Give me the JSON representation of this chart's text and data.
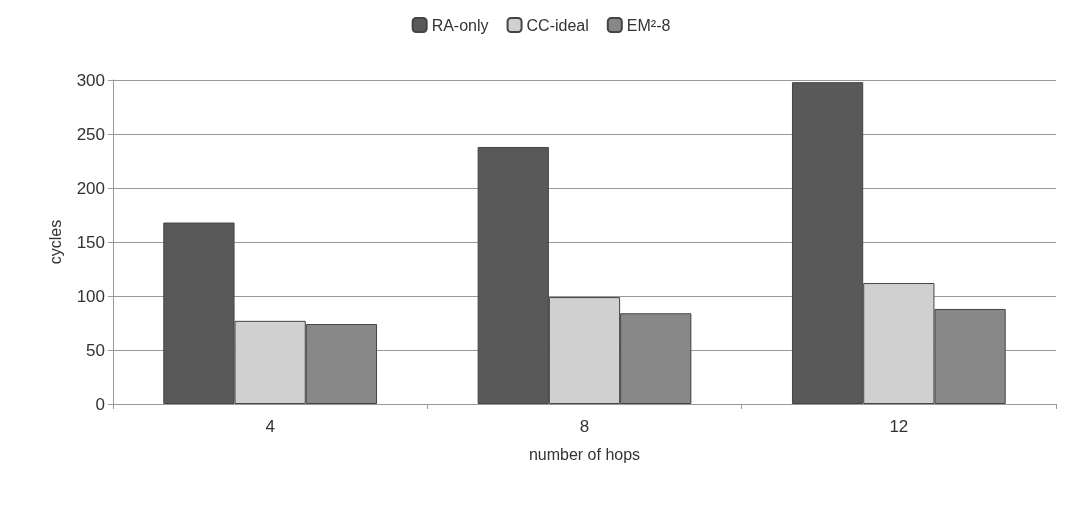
{
  "chart_data": {
    "type": "bar",
    "xlabel": "number of hops",
    "ylabel": "cycles",
    "categories": [
      "4",
      "8",
      "12"
    ],
    "series": [
      {
        "name": "RA-only",
        "color": "#595959",
        "values": [
          168,
          238,
          298
        ]
      },
      {
        "name": "CC-ideal",
        "color": "#d0d0d0",
        "values": [
          77,
          99,
          112
        ]
      },
      {
        "name": "EM²-8",
        "color": "#888888",
        "values": [
          74,
          84,
          88
        ]
      }
    ],
    "ylim": [
      0,
      300
    ],
    "yticks": [
      0,
      50,
      100,
      150,
      200,
      250,
      300
    ],
    "grid": "y",
    "legend": "top"
  }
}
